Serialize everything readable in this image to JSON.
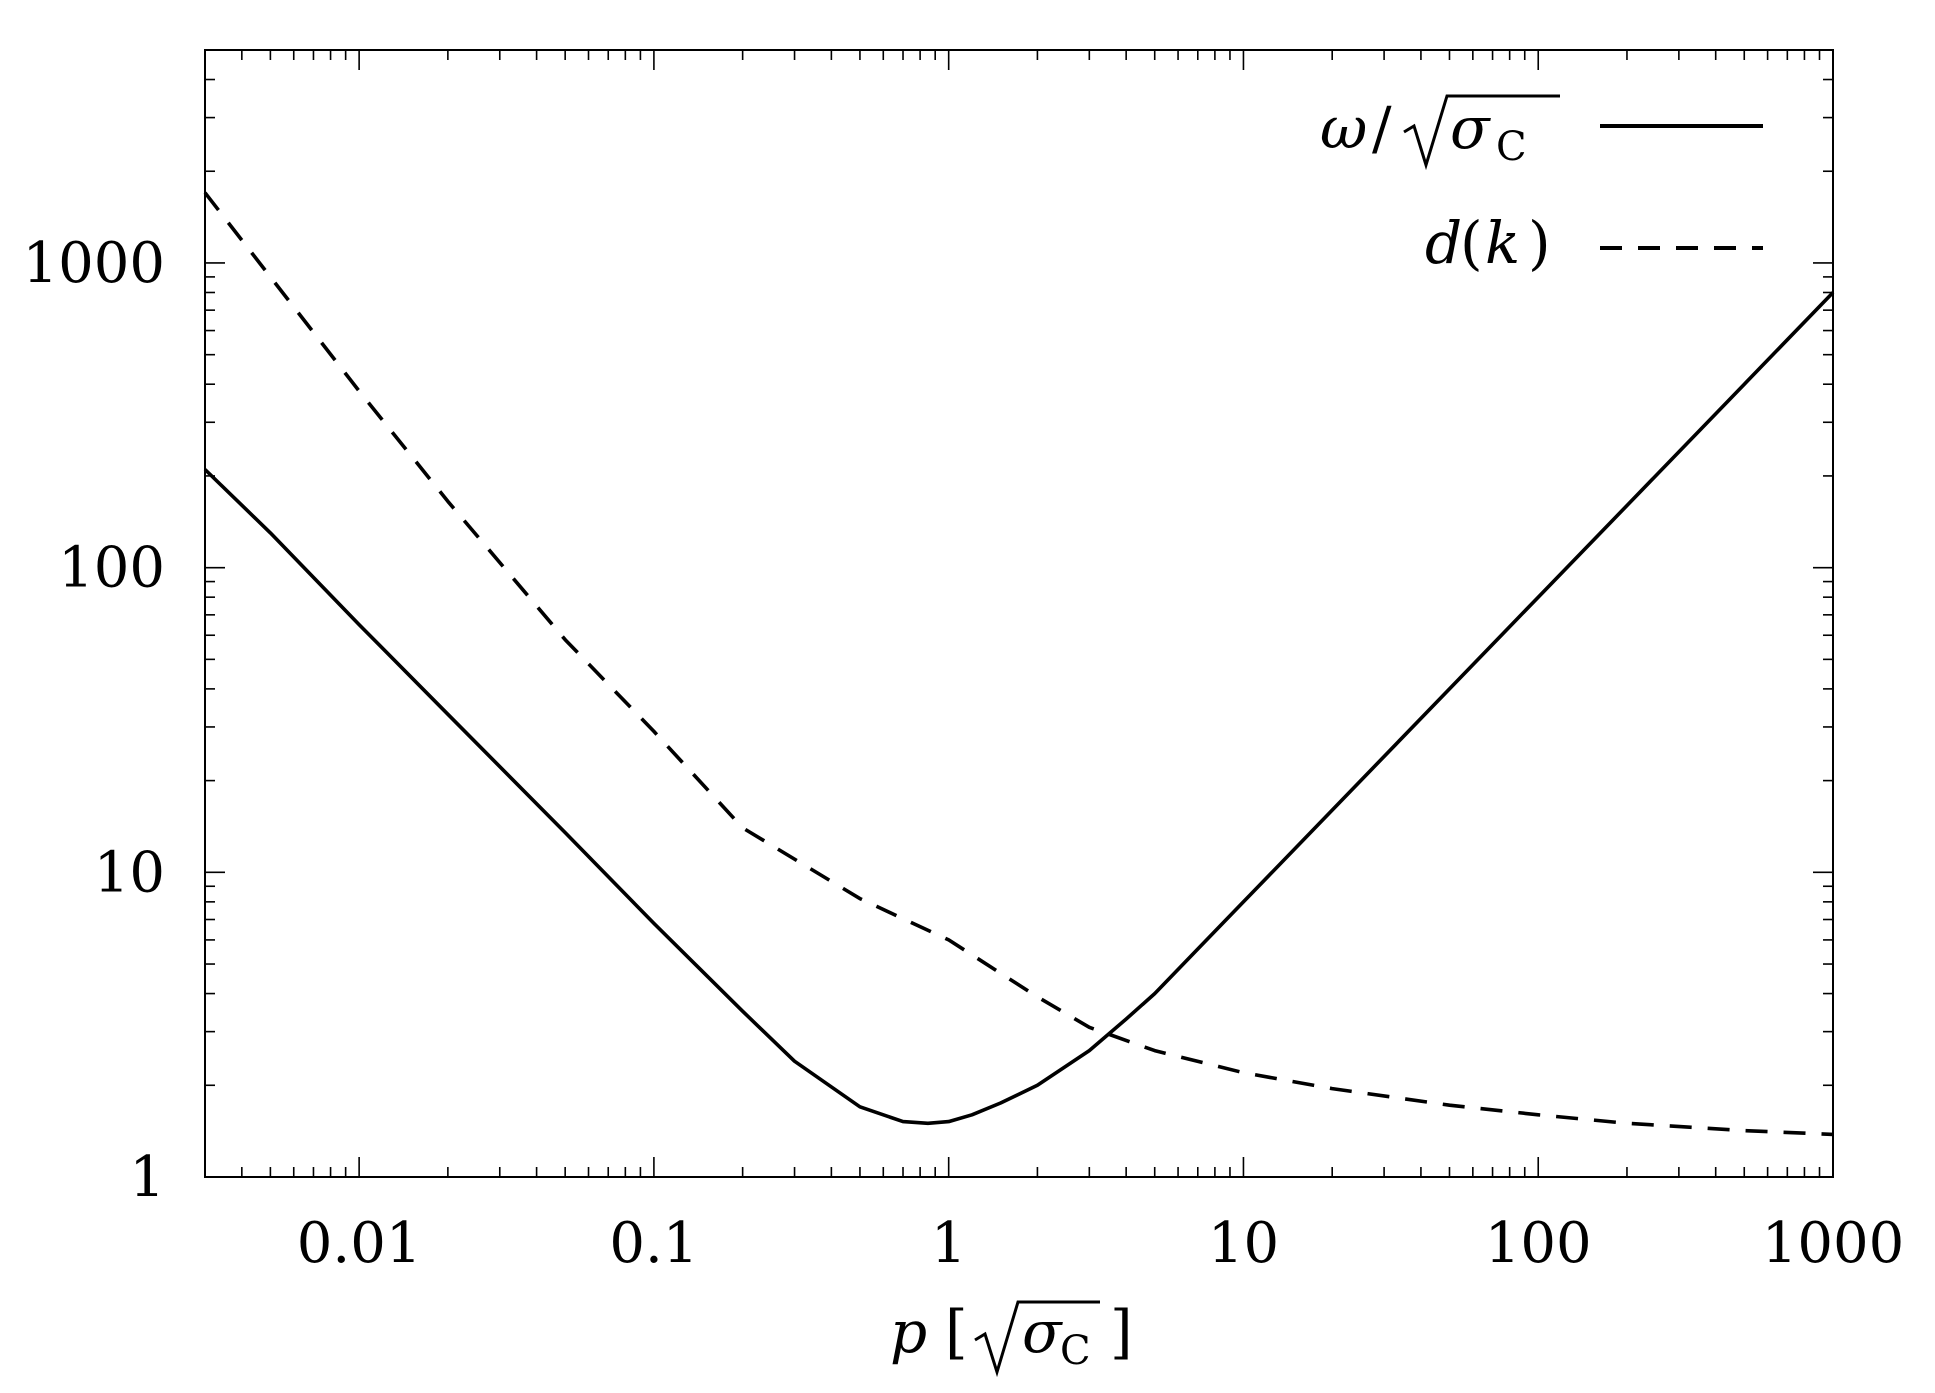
{
  "chart_data": {
    "type": "line",
    "xscale": "log",
    "yscale": "log",
    "xlim": [
      0.003,
      1000
    ],
    "ylim": [
      1,
      5000
    ],
    "grid": false,
    "legend_position": "top-right",
    "x_ticks": [
      0.01,
      0.1,
      1,
      10,
      100,
      1000
    ],
    "x_tick_labels": [
      "0.01",
      "0.1",
      "1",
      "10",
      "100",
      "1000"
    ],
    "y_ticks": [
      1,
      10,
      100,
      1000
    ],
    "y_tick_labels": [
      "1",
      "10",
      "100",
      "1000"
    ],
    "xlabel": {
      "symbol": "p",
      "unit_open": "[",
      "unit_radicand": "σ",
      "unit_subscript": "C",
      "unit_close": "]"
    },
    "ylabel": "",
    "title": "",
    "series": [
      {
        "name": {
          "numerator": "ω",
          "slash": "/",
          "radicand": "σ",
          "subscript": "C"
        },
        "style": "solid",
        "color": "#000000",
        "x": [
          0.003,
          0.005,
          0.01,
          0.02,
          0.05,
          0.1,
          0.2,
          0.3,
          0.5,
          0.7,
          0.85,
          1.0,
          1.2,
          1.5,
          2.0,
          3.0,
          4.0,
          5.0,
          7.0,
          10,
          20,
          50,
          100,
          200,
          500,
          1000
        ],
        "y": [
          210,
          130,
          65,
          33,
          13.5,
          6.8,
          3.5,
          2.4,
          1.7,
          1.52,
          1.5,
          1.52,
          1.6,
          1.75,
          2.0,
          2.6,
          3.3,
          4.0,
          5.6,
          8.0,
          16,
          40,
          80,
          160,
          400,
          800
        ]
      },
      {
        "name": {
          "function": "d",
          "argument": "k"
        },
        "style": "dashed",
        "color": "#000000",
        "x": [
          0.003,
          0.005,
          0.01,
          0.02,
          0.05,
          0.1,
          0.2,
          0.5,
          1,
          2,
          3,
          5,
          10,
          20,
          50,
          100,
          200,
          500,
          1000
        ],
        "y": [
          1700,
          900,
          380,
          165,
          58,
          29,
          14,
          8.2,
          6.0,
          3.9,
          3.1,
          2.6,
          2.2,
          1.95,
          1.72,
          1.6,
          1.5,
          1.42,
          1.38
        ]
      }
    ]
  }
}
